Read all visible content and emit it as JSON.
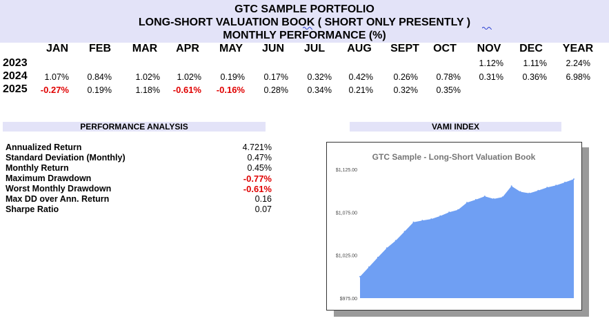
{
  "header": {
    "title1": "GTC SAMPLE PORTFOLIO",
    "title2": "LONG-SHORT VALUATION BOOK ( SHORT ONLY PRESENTLY )",
    "title3": "MONTHLY PERFORMANCE (%)"
  },
  "months": [
    "JAN",
    "FEB",
    "MAR",
    "APR",
    "MAY",
    "JUN",
    "JUL",
    "AUG",
    "SEPT",
    "OCT",
    "NOV",
    "DEC",
    "YEAR"
  ],
  "rows": [
    {
      "year": "2023",
      "values": [
        "",
        "",
        "",
        "",
        "",
        "",
        "",
        "",
        "",
        "",
        "1.12%",
        "1.11%",
        "2.24%"
      ]
    },
    {
      "year": "2024",
      "values": [
        "1.07%",
        "0.84%",
        "1.02%",
        "1.02%",
        "0.19%",
        "0.17%",
        "0.32%",
        "0.42%",
        "0.26%",
        "0.78%",
        "0.31%",
        "0.36%",
        "6.98%"
      ]
    },
    {
      "year": "2025",
      "values": [
        "-0.27%",
        "0.19%",
        "1.18%",
        "-0.61%",
        "-0.16%",
        "0.28%",
        "0.34%",
        "0.21%",
        "0.32%",
        "0.35%",
        "",
        "",
        ""
      ]
    }
  ],
  "analysis": {
    "title": "PERFORMANCE ANALYSIS",
    "metrics": [
      {
        "label": "Annualized Return",
        "value": "4.721%",
        "negative": false
      },
      {
        "label": "Standard Deviation (Monthly)",
        "value": "0.47%",
        "negative": false
      },
      {
        "label": "Monthly Return",
        "value": "0.45%",
        "negative": false
      },
      {
        "label": "Maximum Drawdown",
        "value": "-0.77%",
        "negative": true
      },
      {
        "label": "Worst Monthly Drawdown",
        "value": "-0.61%",
        "negative": true
      },
      {
        "label": "Max DD over Ann. Return",
        "value": "0.16",
        "negative": false
      },
      {
        "label": "Sharpe Ratio",
        "value": "0.07",
        "negative": false
      }
    ]
  },
  "vami": {
    "title": "VAMI INDEX"
  },
  "colors": {
    "negative": "#e00000",
    "header_bg": "#e3e3f8",
    "area": "#6f9ff3"
  },
  "chart_data": {
    "type": "area",
    "title": "GTC Sample - Long-Short Valuation Book",
    "xlabel": "",
    "ylabel": "",
    "ylim": [
      975,
      1125
    ],
    "yticks": [
      975,
      1025,
      1075,
      1125
    ],
    "ytick_labels": [
      "$975.00",
      "$1,025.00",
      "$1,075.00",
      "$1,125.00"
    ],
    "x": [
      "2023-10",
      "2023-11",
      "2023-12",
      "2024-01",
      "2024-02",
      "2024-03",
      "2024-04",
      "2024-05",
      "2024-06",
      "2024-07",
      "2024-08",
      "2024-09",
      "2024-10",
      "2024-11",
      "2024-12",
      "2025-01",
      "2025-02",
      "2025-03",
      "2025-04",
      "2025-05",
      "2025-06",
      "2025-07",
      "2025-08",
      "2025-09",
      "2025-10"
    ],
    "values": [
      1000.0,
      1011.2,
      1022.4,
      1033.4,
      1042.0,
      1052.6,
      1063.4,
      1065.4,
      1067.2,
      1070.6,
      1075.1,
      1077.9,
      1086.3,
      1089.7,
      1093.6,
      1090.6,
      1092.7,
      1105.6,
      1098.9,
      1097.2,
      1100.3,
      1104.0,
      1106.3,
      1109.8,
      1113.7
    ],
    "grid": false,
    "legend": "none"
  }
}
